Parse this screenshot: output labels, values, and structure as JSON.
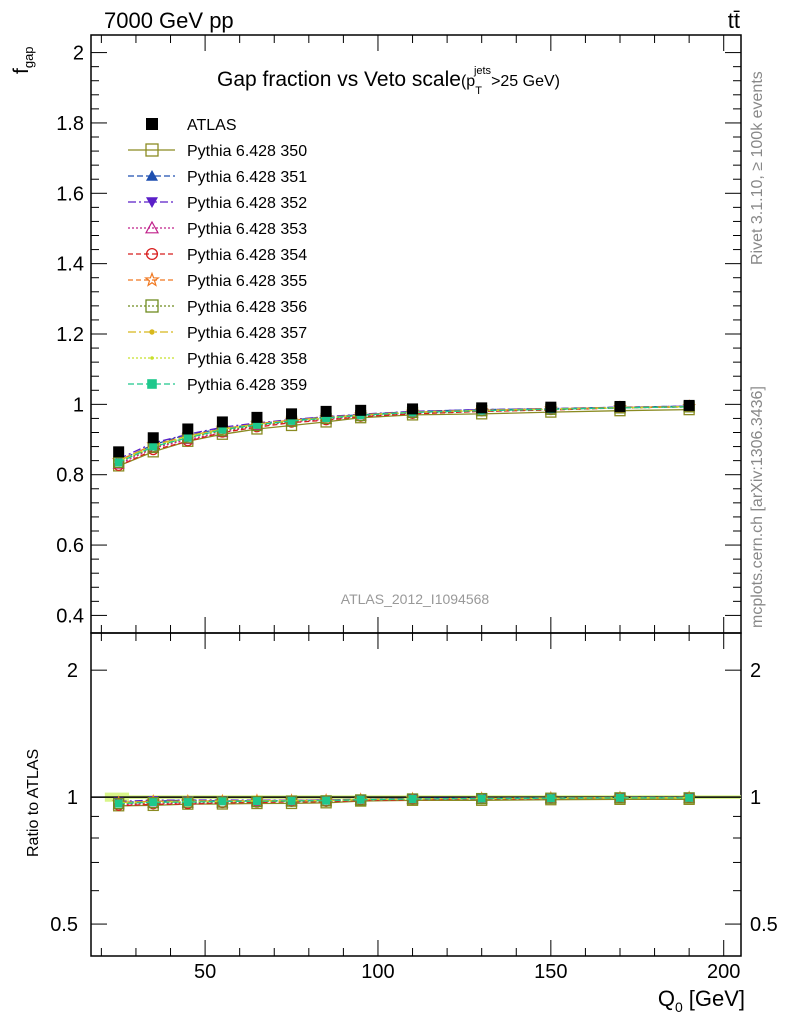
{
  "header": {
    "beam": "7000 GeV pp",
    "process": "tt̄",
    "side_rivet": "Rivet 3.1.10, ≥ 100k events",
    "side_mcplots": "mcplots.cern.ch [arXiv:1306.3436]",
    "analysis_id": "ATLAS_2012_I1094568"
  },
  "chart_data": [
    {
      "type": "line",
      "title": "Gap fraction vs Veto scale",
      "title_cut": {
        "p": "(p",
        "sup": "jets",
        "sub": "T",
        "rest": ">25 GeV)"
      },
      "xlabel": "Q",
      "xlabel_sub": "0",
      "xlabel_unit": "[GeV]",
      "ylabel": "f",
      "ylabel_sub": "gap",
      "xlim": [
        17,
        205
      ],
      "ylim": [
        0.35,
        2.05
      ],
      "xticks": [
        50,
        100,
        150,
        200
      ],
      "yticks": [
        0.4,
        0.6,
        0.8,
        1,
        1.2,
        1.4,
        1.6,
        1.8,
        2
      ],
      "ytick_labels": [
        "0.4",
        "0.6",
        "0.8",
        "1",
        "1.2",
        "1.4",
        "1.6",
        "1.8",
        "2"
      ],
      "x": [
        25,
        35,
        45,
        55,
        65,
        75,
        85,
        95,
        110,
        130,
        150,
        170,
        190
      ],
      "data": {
        "name": "ATLAS",
        "values": [
          0.865,
          0.905,
          0.93,
          0.95,
          0.963,
          0.973,
          0.98,
          0.983,
          0.987,
          0.99,
          0.992,
          0.994,
          0.997
        ]
      },
      "series": [
        {
          "name": "Pythia 6.428 350",
          "color": "#8b8b22",
          "dash": "",
          "marker": "square-open",
          "values": [
            0.825,
            0.865,
            0.895,
            0.915,
            0.93,
            0.94,
            0.95,
            0.962,
            0.97,
            0.973,
            0.978,
            0.982,
            0.985
          ]
        },
        {
          "name": "Pythia 6.428 351",
          "color": "#1e4fb0",
          "dash": "6,3",
          "marker": "triangle-up",
          "values": [
            0.84,
            0.885,
            0.915,
            0.93,
            0.945,
            0.955,
            0.965,
            0.97,
            0.98,
            0.985,
            0.988,
            0.992,
            0.995
          ]
        },
        {
          "name": "Pythia 6.428 352",
          "color": "#5a1fc8",
          "dash": "8,3,2,3",
          "marker": "triangle-down",
          "values": [
            0.845,
            0.89,
            0.915,
            0.935,
            0.947,
            0.957,
            0.965,
            0.972,
            0.98,
            0.985,
            0.988,
            0.992,
            0.995
          ]
        },
        {
          "name": "Pythia 6.428 353",
          "color": "#c0208a",
          "dash": "2,2",
          "marker": "triangle-open",
          "values": [
            0.83,
            0.875,
            0.9,
            0.92,
            0.94,
            0.95,
            0.957,
            0.966,
            0.975,
            0.98,
            0.985,
            0.99,
            0.993
          ]
        },
        {
          "name": "Pythia 6.428 354",
          "color": "#d81e1e",
          "dash": "5,3",
          "marker": "circle-open",
          "values": [
            0.825,
            0.87,
            0.895,
            0.92,
            0.935,
            0.948,
            0.955,
            0.965,
            0.973,
            0.98,
            0.984,
            0.99,
            0.993
          ]
        },
        {
          "name": "Pythia 6.428 355",
          "color": "#f07820",
          "dash": "5,3",
          "marker": "star-open",
          "values": [
            0.84,
            0.885,
            0.91,
            0.93,
            0.945,
            0.955,
            0.963,
            0.97,
            0.978,
            0.983,
            0.987,
            0.991,
            0.994
          ]
        },
        {
          "name": "Pythia 6.428 356",
          "color": "#6f8c1f",
          "dash": "2,2",
          "marker": "square-open",
          "values": [
            0.835,
            0.878,
            0.905,
            0.925,
            0.94,
            0.952,
            0.96,
            0.968,
            0.977,
            0.982,
            0.986,
            0.99,
            0.993
          ]
        },
        {
          "name": "Pythia 6.428 357",
          "color": "#d8b81c",
          "dash": "8,3,2,3",
          "marker": "dot",
          "values": [
            0.84,
            0.883,
            0.91,
            0.93,
            0.944,
            0.955,
            0.962,
            0.97,
            0.978,
            0.983,
            0.987,
            0.991,
            0.994
          ]
        },
        {
          "name": "Pythia 6.428 358",
          "color": "#c8e02a",
          "dash": "2,2",
          "marker": "dot-small",
          "values": [
            0.838,
            0.88,
            0.908,
            0.928,
            0.943,
            0.953,
            0.961,
            0.969,
            0.977,
            0.982,
            0.986,
            0.99,
            0.993
          ]
        },
        {
          "name": "Pythia 6.428 359",
          "color": "#1ec88c",
          "dash": "6,3",
          "marker": "square",
          "values": [
            0.835,
            0.88,
            0.905,
            0.928,
            0.942,
            0.953,
            0.961,
            0.969,
            0.977,
            0.982,
            0.986,
            0.99,
            0.993
          ]
        }
      ],
      "grid": false,
      "legend": "top-left"
    },
    {
      "type": "line",
      "ylabel": "Ratio to ATLAS",
      "ylim": [
        0.42,
        2.45
      ],
      "yscale": "log",
      "yticks": [
        0.5,
        1,
        2
      ],
      "ytick_labels": [
        "0.5",
        "1",
        "2"
      ],
      "band_color": "#d8f58a",
      "x": [
        25,
        35,
        45,
        55,
        65,
        75,
        85,
        95,
        110,
        130,
        150,
        170,
        190
      ],
      "series_ratio_note": "ratio = series / ATLAS"
    }
  ]
}
